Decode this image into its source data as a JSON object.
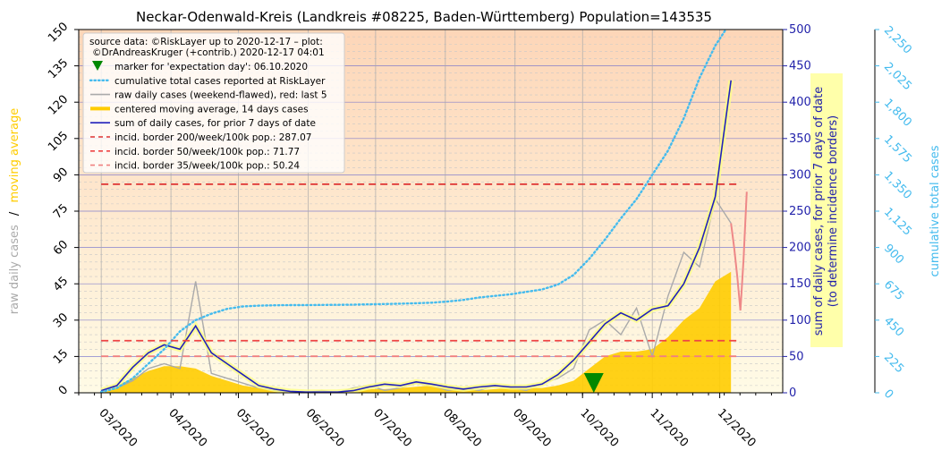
{
  "chart_data": {
    "type": "line",
    "title": "Neckar-Odenwald-Kreis (Landkreis #08225, Baden-Württemberg) Population=143535",
    "source_note_1": "source data: ©RiskLayer up to 2020-12-17 – plot:",
    "source_note_2": "©DrAndreasKruger (+contrib.) 2020-12-17 04:01",
    "axes": {
      "left": {
        "label_part1": "raw daily cases",
        "label_sep": "/",
        "label_part2": "moving average",
        "ylim": [
          0,
          150
        ],
        "ticks": [
          "0",
          "15",
          "30",
          "45",
          "60",
          "75",
          "90",
          "105",
          "120",
          "135",
          "150"
        ],
        "label_color_raw": "#aaaaaa",
        "label_color_avg": "#ffcc00"
      },
      "right1": {
        "label_line1": "sum of daily cases, for prior 7 days of date",
        "label_line2": "(to determine incidence borders)",
        "ylim": [
          0,
          500
        ],
        "ticks": [
          "0",
          "50",
          "100",
          "150",
          "200",
          "250",
          "300",
          "350",
          "400",
          "450",
          "500"
        ],
        "color": "#2222aa"
      },
      "right2": {
        "label": "cumulative total cases",
        "ylim": [
          0,
          2250
        ],
        "ticks": [
          "0",
          "225",
          "450",
          "675",
          "900",
          "1,125",
          "1,350",
          "1,575",
          "1,800",
          "2,025",
          "2,250"
        ],
        "color": "#44bbee"
      },
      "x": {
        "ticks": [
          "03/2020",
          "04/2020",
          "05/2020",
          "06/2020",
          "07/2020",
          "08/2020",
          "09/2020",
          "10/2020",
          "11/2020",
          "12/2020"
        ],
        "range": [
          "2020-02-20",
          "2020-12-29"
        ]
      }
    },
    "legend": {
      "placement": "top-left",
      "items": [
        {
          "key": "marker",
          "label": "marker for 'expectation day': 06.10.2020",
          "color": "#008800"
        },
        {
          "key": "cumulative",
          "label": "cumulative total cases reported at RiskLayer",
          "color": "#44bbee"
        },
        {
          "key": "raw",
          "label": "raw daily cases (weekend-flawed), red: last 5",
          "color": "#aaaaaa"
        },
        {
          "key": "avg",
          "label": "centered moving average, 14 days cases",
          "color": "#ffcc00"
        },
        {
          "key": "sum7",
          "label": "sum of daily cases, for prior 7 days of date",
          "color": "#2222bb"
        },
        {
          "key": "b200",
          "label": "incid. border 200/week/100k pop.: 287.07",
          "color": "#dd3333"
        },
        {
          "key": "b50",
          "label": "incid. border 50/week/100k pop.: 71.77",
          "color": "#ee4444"
        },
        {
          "key": "b35",
          "label": "incid. border 35/week/100k pop.: 50.24",
          "color": "#f08080"
        }
      ]
    },
    "incidence_borders": [
      {
        "label": "200/week/100k",
        "value_sum7": 287.07,
        "color": "#dd3333"
      },
      {
        "label": "50/week/100k",
        "value_sum7": 71.77,
        "color": "#ee4444"
      },
      {
        "label": "35/week/100k",
        "value_sum7": 50.24,
        "color": "#f08080"
      }
    ],
    "expectation_day": "2020-10-06",
    "series_dates_start": "2020-03-01",
    "series_step_days": 7,
    "series": [
      {
        "name": "centered moving average, 14 days cases",
        "axis": "left",
        "values": [
          1,
          3,
          6,
          9,
          11,
          11,
          10,
          7,
          5,
          3,
          2,
          1,
          0.5,
          0.3,
          0.3,
          0.5,
          1,
          1.5,
          1.5,
          2,
          2.5,
          3,
          2,
          1.5,
          1,
          1.5,
          2,
          2,
          2,
          3,
          5,
          10,
          15,
          17,
          17,
          18,
          23,
          30,
          35,
          46,
          50
        ]
      },
      {
        "name": "sum of daily cases, for prior 7 days of date",
        "axis": "right1",
        "values": [
          3,
          10,
          35,
          55,
          66,
          60,
          92,
          55,
          40,
          25,
          10,
          5,
          2,
          1,
          1,
          1,
          3,
          8,
          12,
          10,
          15,
          12,
          8,
          5,
          8,
          10,
          8,
          8,
          12,
          25,
          45,
          70,
          95,
          110,
          100,
          115,
          120,
          150,
          200,
          270,
          430
        ]
      },
      {
        "name": "raw daily cases (weekend-flawed), red: last 5",
        "axis": "left",
        "values": [
          0,
          2,
          5,
          10,
          12,
          10,
          46,
          8,
          6,
          4,
          2,
          1,
          0,
          0,
          1,
          0,
          2,
          3,
          1,
          2,
          4,
          3,
          1,
          2,
          1,
          3,
          2,
          1,
          4,
          6,
          10,
          26,
          30,
          24,
          35,
          15,
          40,
          58,
          52,
          80,
          70
        ]
      },
      {
        "name": "raw daily cases – last 5",
        "axis": "left",
        "values": [
          60,
          48,
          34,
          55,
          83
        ]
      },
      {
        "name": "cumulative total cases reported at RiskLayer",
        "axis": "right2",
        "values": [
          5,
          30,
          90,
          180,
          270,
          380,
          450,
          490,
          520,
          535,
          540,
          542,
          543,
          543,
          544,
          545,
          546,
          548,
          550,
          552,
          555,
          558,
          565,
          575,
          590,
          600,
          610,
          625,
          640,
          670,
          730,
          830,
          950,
          1080,
          1200,
          1350,
          1500,
          1700,
          1950,
          2150,
          2300
        ]
      }
    ]
  }
}
